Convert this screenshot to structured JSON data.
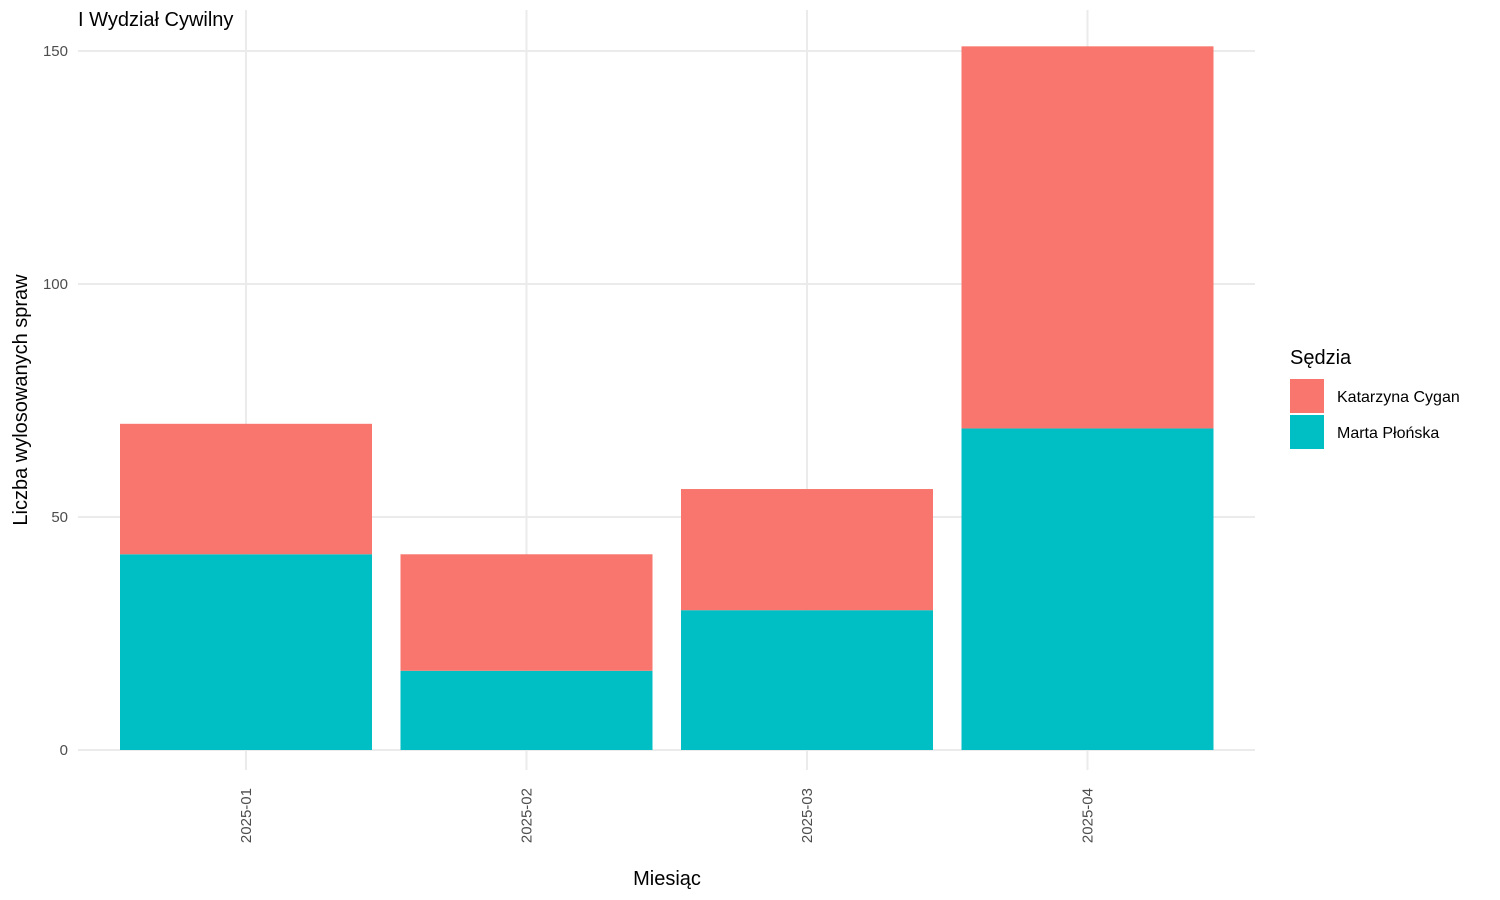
{
  "chart_data": {
    "type": "bar",
    "stacked": true,
    "title": "I Wydział Cywilny",
    "xlabel": "Miesiąc",
    "ylabel": "Liczba wylosowanych spraw",
    "categories": [
      "2025-01",
      "2025-02",
      "2025-03",
      "2025-04"
    ],
    "series": [
      {
        "name": "Marta Płońska",
        "color": "#00BFC4",
        "values": [
          42,
          17,
          30,
          69
        ]
      },
      {
        "name": "Katarzyna Cygan",
        "color": "#F8766D",
        "values": [
          28,
          25,
          26,
          82
        ]
      }
    ],
    "ylim": [
      0,
      150
    ],
    "yticks": [
      0,
      50,
      100,
      150
    ],
    "grid": true,
    "legend": {
      "title": "Sędzia",
      "position": "right",
      "entries": [
        "Katarzyna Cygan",
        "Marta Płońska"
      ]
    }
  }
}
